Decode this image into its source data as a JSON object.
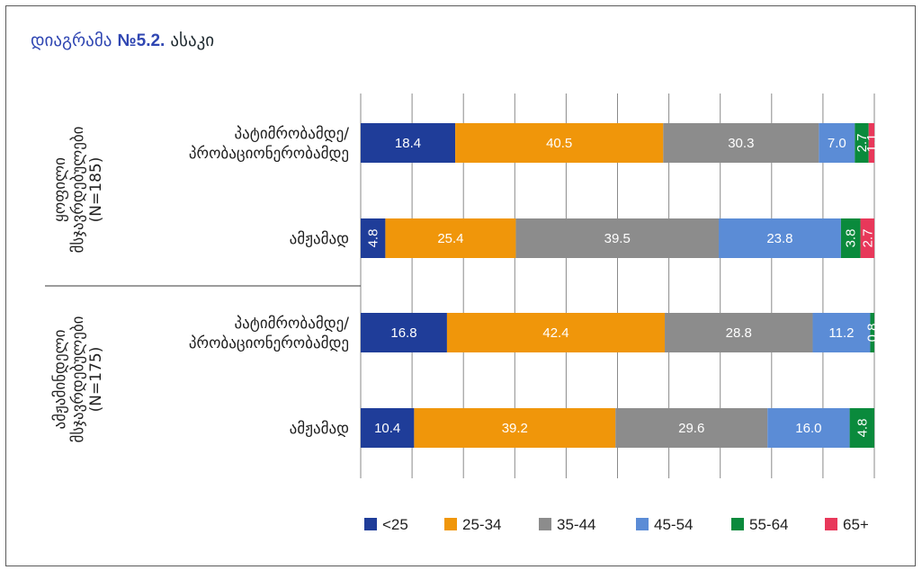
{
  "title": {
    "prefix": "დიაგრამა",
    "number": "№5.2.",
    "text": "ასაკი"
  },
  "chart_data": {
    "type": "bar",
    "orientation": "horizontal-stacked-100",
    "series": [
      {
        "name": "<25",
        "color": "#1f3d99"
      },
      {
        "name": "25-34",
        "color": "#f0960a"
      },
      {
        "name": "35-44",
        "color": "#8c8c8c"
      },
      {
        "name": "45-54",
        "color": "#5b8cd6"
      },
      {
        "name": "55-64",
        "color": "#0a8a3c"
      },
      {
        "name": "65+",
        "color": "#e8385a"
      }
    ],
    "groups": [
      {
        "label": [
          "ყოფილი",
          "მსჯავრდებულები",
          "(N=185)"
        ],
        "rows": [
          {
            "label": [
              "პატიმრობამდე/",
              "პრობაციონერობამდე"
            ],
            "values": [
              18.4,
              40.5,
              30.3,
              7.0,
              2.7,
              1.1
            ]
          },
          {
            "label": [
              "ამჟამად"
            ],
            "values": [
              4.8,
              25.4,
              39.5,
              23.8,
              3.8,
              2.7
            ]
          }
        ]
      },
      {
        "label": [
          "ამჟამინდელი",
          "მსჯავრდებულები",
          "(N=175)"
        ],
        "rows": [
          {
            "label": [
              "პატიმრობამდე/",
              "პრობაციონერობამდე"
            ],
            "values": [
              16.8,
              42.4,
              28.8,
              11.2,
              0.8
            ]
          },
          {
            "label": [
              "ამჟამად"
            ],
            "values": [
              10.4,
              39.2,
              29.6,
              16.0,
              4.8
            ]
          }
        ]
      }
    ],
    "xlim": [
      0,
      100
    ],
    "grid": true,
    "legend": "bottom"
  }
}
